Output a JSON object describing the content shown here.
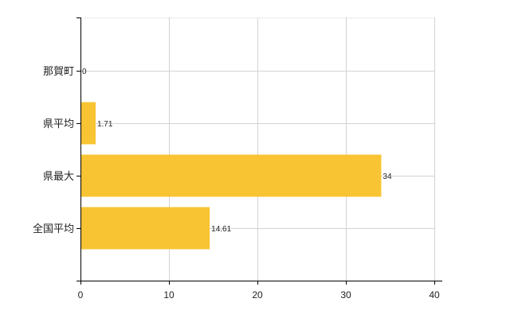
{
  "chart_data": {
    "type": "bar",
    "orientation": "horizontal",
    "categories": [
      "那賀町",
      "県平均",
      "県最大",
      "全国平均"
    ],
    "values": [
      0,
      1.71,
      34,
      14.61
    ],
    "value_labels": [
      "0",
      "1.71",
      "34",
      "14.61"
    ],
    "xlim": [
      0,
      40
    ],
    "xticks": [
      0,
      10,
      20,
      30,
      40
    ],
    "xtick_labels": [
      "0",
      "10",
      "20",
      "30",
      "40"
    ],
    "grid": true,
    "legend": "none",
    "colors": {
      "bar": "#F8C433",
      "grid": "#D3D3D3",
      "axis": "#000000",
      "text": "#222222"
    }
  }
}
